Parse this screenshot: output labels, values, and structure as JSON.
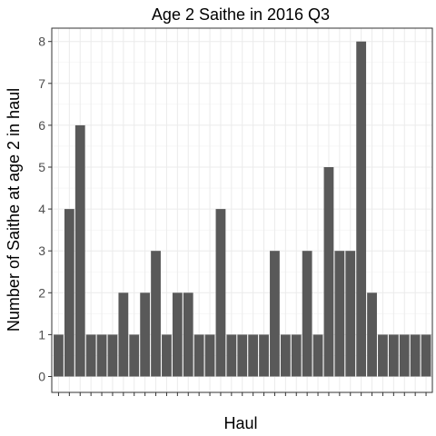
{
  "chart_data": {
    "type": "bar",
    "title": "Age 2 Saithe in 2016 Q3",
    "xlabel": "Haul",
    "ylabel": "Number of Saithe at age 2 in haul",
    "x_tick_labels_shown": false,
    "ylim": [
      0,
      8.4
    ],
    "y_ticks": [
      0,
      1,
      2,
      3,
      4,
      5,
      6,
      7,
      8
    ],
    "grid": true,
    "bar_color": "#595959",
    "values": [
      1,
      4,
      6,
      1,
      1,
      1,
      2,
      1,
      2,
      3,
      1,
      2,
      2,
      1,
      1,
      4,
      1,
      1,
      1,
      1,
      3,
      1,
      1,
      3,
      1,
      5,
      3,
      3,
      8,
      2,
      1,
      1,
      1,
      1,
      1
    ]
  }
}
